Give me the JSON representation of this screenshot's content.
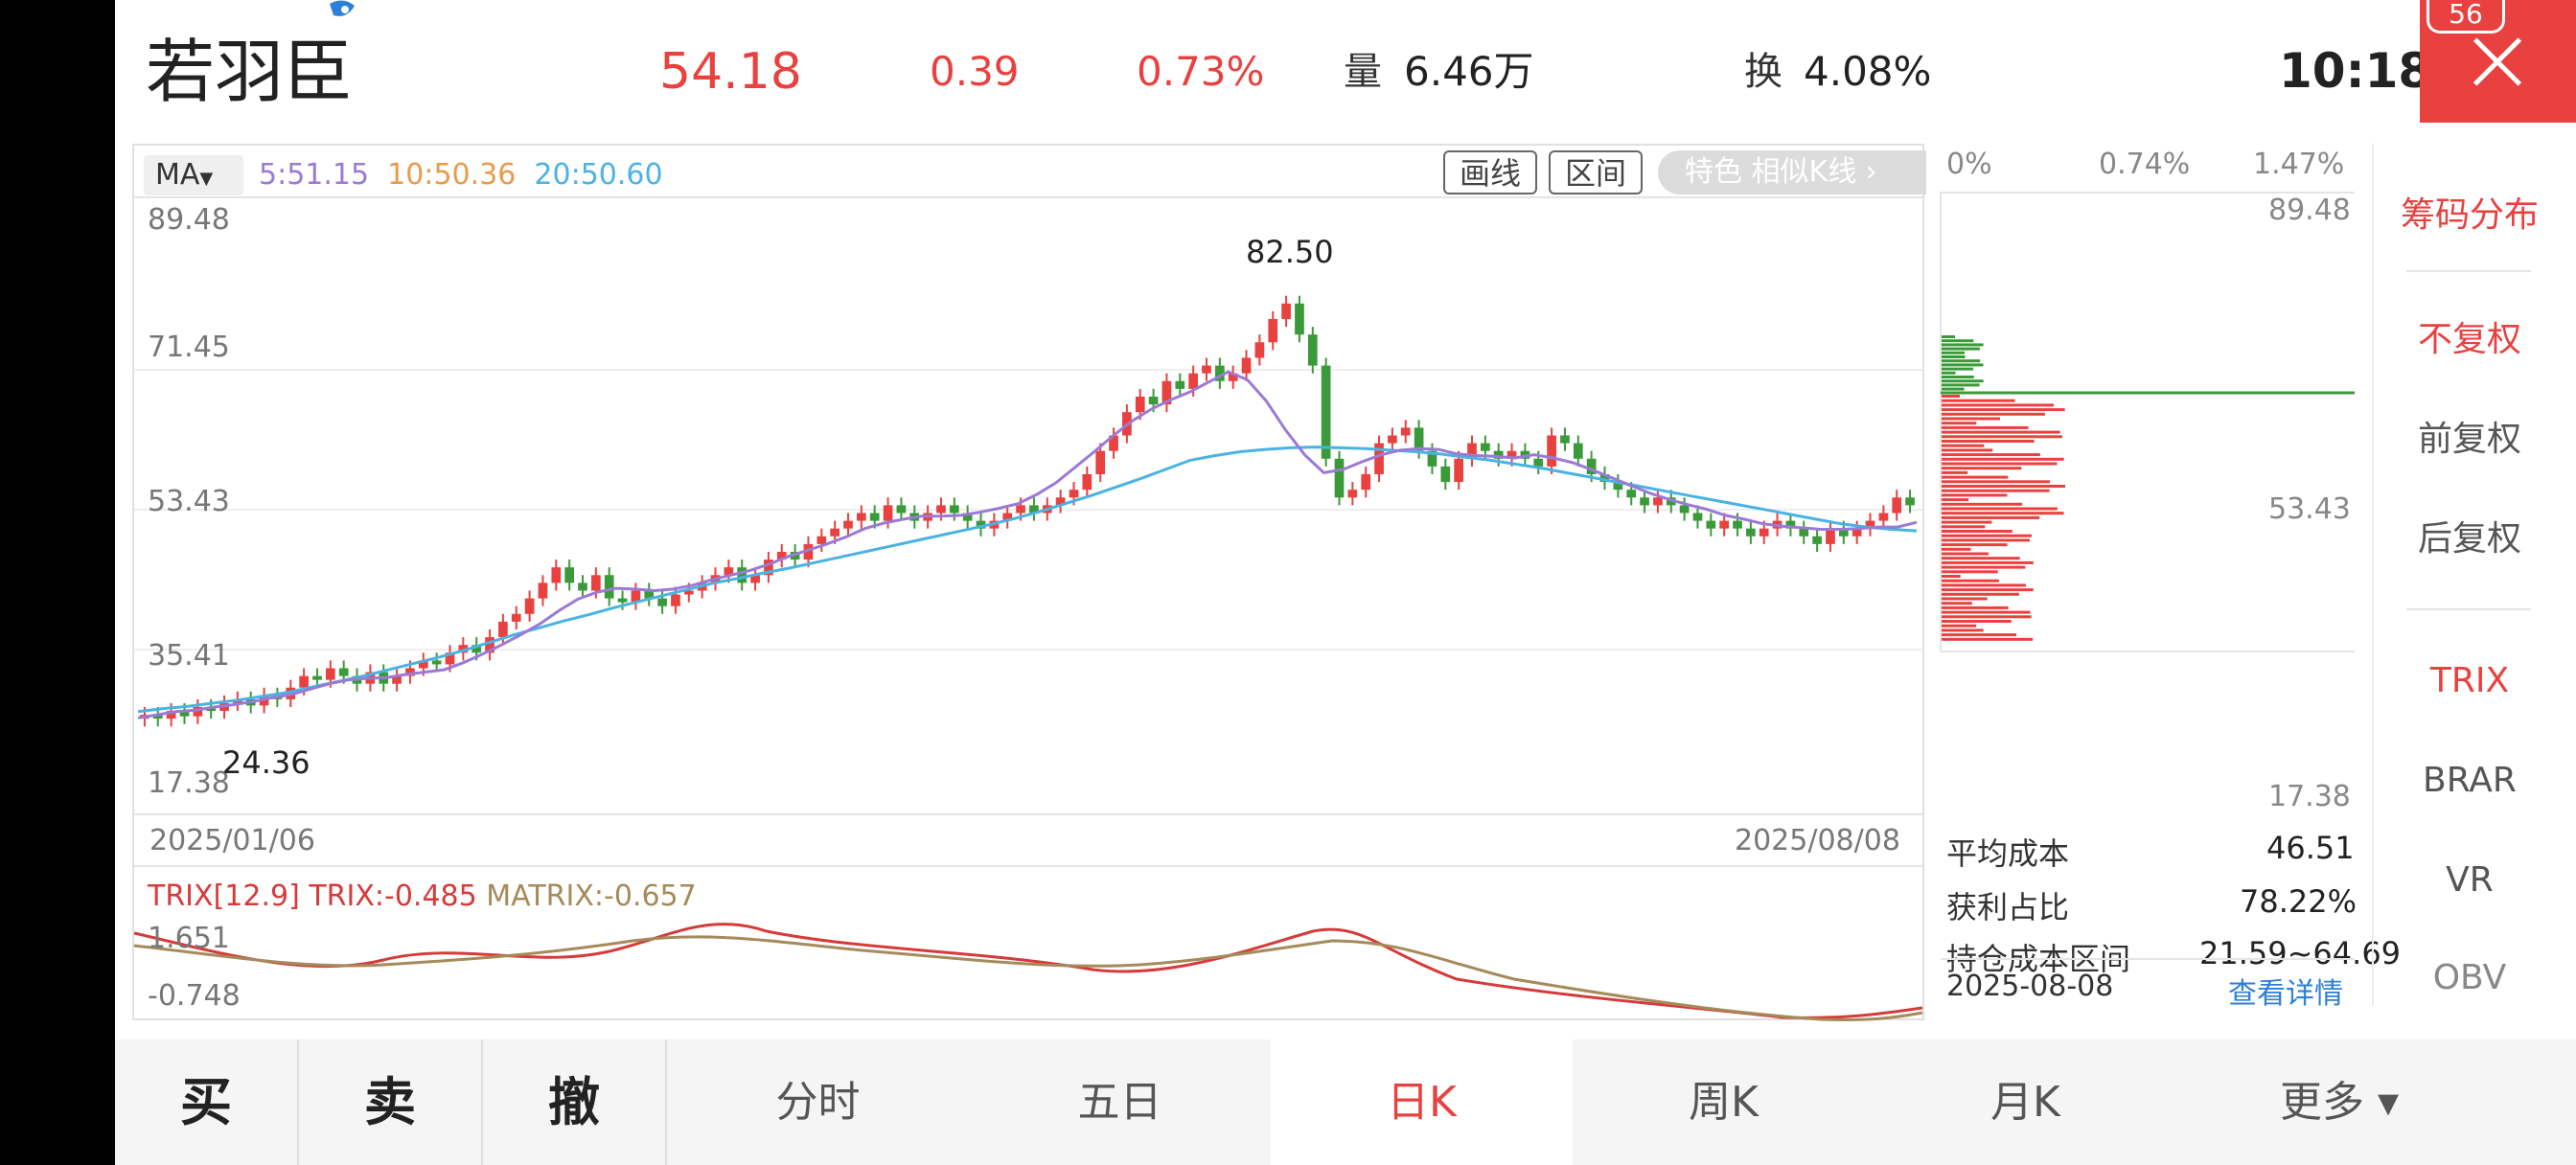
{
  "stock": {
    "name": "若羽臣",
    "price": "54.18",
    "change": "0.39",
    "change_pct": "0.73%",
    "volume_label": "量",
    "volume": "6.46万",
    "turnover_label": "换",
    "turnover": "4.08%",
    "time": "10:18",
    "badge": "56"
  },
  "colors": {
    "up": "#e8413f",
    "down": "#3a9a3a",
    "ma5": "#9b7ad6",
    "ma10": "#e89b4a",
    "ma20": "#4ab3e3",
    "trix": "#d63a3a",
    "matrix": "#a58a5a",
    "link": "#2e7fd6"
  },
  "ma_bar": {
    "button": "MA",
    "ma5": "5:51.15",
    "ma10": "10:50.36",
    "ma20": "20:50.60"
  },
  "tools": {
    "draw": "画线",
    "range": "区间",
    "feature": "特色  相似K线 ›"
  },
  "chart_data": {
    "type": "candlestick",
    "y_axis_ticks": [
      "89.48",
      "71.45",
      "53.43",
      "35.41",
      "17.38"
    ],
    "ylim": [
      17.38,
      89.48
    ],
    "x_labels": [
      "2025/01/06",
      "2025/08/08"
    ],
    "high_annotation": "82.50",
    "low_annotation": "24.36",
    "closes": [
      27,
      26.5,
      27.5,
      26.8,
      28,
      27.5,
      28.5,
      29,
      28.2,
      29.5,
      29,
      30.5,
      32,
      31.5,
      33,
      32,
      31,
      32.5,
      31,
      32,
      33,
      34,
      33.5,
      35,
      36,
      35,
      37,
      39,
      40,
      42,
      44,
      46,
      44,
      43,
      45,
      42,
      41.5,
      43,
      42,
      41,
      42.5,
      43,
      44,
      45,
      46,
      44,
      45,
      47,
      48,
      47,
      49,
      50,
      51,
      52,
      53,
      52,
      54,
      53,
      52,
      53,
      54,
      53,
      52,
      51,
      52,
      53,
      54,
      53,
      54,
      55,
      56,
      58,
      61,
      63,
      66,
      68,
      67,
      70,
      69,
      71,
      72,
      70,
      71,
      73,
      75,
      78,
      80,
      76,
      72,
      60,
      55,
      56,
      58,
      62,
      63,
      64,
      61,
      59,
      57,
      60,
      62,
      61,
      60,
      61,
      60,
      59,
      63,
      62,
      60,
      58,
      57,
      56,
      55,
      54,
      55,
      54,
      53,
      52,
      51,
      52,
      51,
      50,
      51,
      52,
      51,
      50,
      49,
      51,
      50,
      51,
      52,
      53,
      55,
      54
    ],
    "ma5": [
      26.6,
      27,
      27.4,
      27.6,
      28,
      28.3,
      28.7,
      29.2,
      29.6,
      30.3,
      31,
      31.5,
      31.7,
      31.8,
      32.2,
      32.5,
      32.8,
      33.7,
      34.8,
      36,
      37.3,
      38.7,
      40.4,
      41.9,
      42.8,
      43.3,
      43.2,
      43,
      43.2,
      43.7,
      44.4,
      45,
      45.6,
      46.4,
      47.4,
      48.2,
      49,
      49.9,
      51,
      51.7,
      52.2,
      52.6,
      52.6,
      52.7,
      53.1,
      53.6,
      54.2,
      55.4,
      56.9,
      58.9,
      60.9,
      63,
      64.9,
      66.4,
      67.6,
      68.6,
      69.9,
      71.2,
      70.2,
      67.4,
      63.7,
      60.5,
      58.2,
      58.6,
      59.6,
      60.5,
      61.1,
      61.3,
      61.2,
      60.6,
      60.4,
      60.3,
      60.1,
      60.5,
      60.1,
      59.5,
      58.6,
      57.6,
      56.6,
      55.6,
      54.8,
      54.1,
      53.5,
      52.7,
      52.2,
      51.6,
      51.3,
      51.1,
      50.9,
      50.9,
      51,
      51.2,
      51.2,
      51.8
    ],
    "ma20": [
      27.4,
      27.8,
      28.1,
      28.5,
      28.9,
      29.4,
      29.9,
      30.6,
      31.3,
      32,
      32.8,
      33.6,
      34.4,
      35.3,
      36.3,
      37.3,
      38.2,
      39.1,
      39.9,
      40.8,
      41.6,
      42.4,
      43.2,
      44,
      44.6,
      45.3,
      45.9,
      46.6,
      47.3,
      48,
      48.7,
      49.4,
      50.1,
      50.8,
      51.5,
      52.3,
      53.2,
      54.2,
      55.2,
      56.3,
      57.4,
      58.6,
      59.8,
      60.4,
      60.9,
      61.2,
      61.4,
      61.5,
      61.4,
      61.3,
      61.1,
      60.9,
      60.6,
      60.2,
      59.8,
      59.3,
      58.8,
      58.2,
      57.6,
      57,
      56.4,
      55.8,
      55.2,
      54.6,
      54,
      53.4,
      52.8,
      52.2,
      51.6,
      51.2,
      50.9,
      50.7
    ]
  },
  "trix": {
    "header": "TRIX[12.9]",
    "trix_value": "TRIX:-0.485",
    "matrix_value": "MATRIX:-0.657",
    "top": "1.651",
    "bottom": "-0.748"
  },
  "chip_panel": {
    "pct_labels": [
      "0%",
      "0.74%",
      "1.47%"
    ],
    "price_top": "89.48",
    "price_mid": "53.43",
    "price_bottom": "17.38",
    "avg_cost_label": "平均成本",
    "avg_cost": "46.51",
    "profit_label": "获利占比",
    "profit": "78.22%",
    "range_label": "持仓成本区间",
    "range": "21.59~64.69",
    "date": "2025-08-08",
    "detail_link": "查看详情"
  },
  "side_menu": {
    "items": [
      "筹码分布",
      "不复权",
      "前复权",
      "后复权",
      "TRIX",
      "BRAR",
      "VR",
      "OBV"
    ]
  },
  "bottom_bar": {
    "buy": "买",
    "sell": "卖",
    "cancel": "撤",
    "tabs": [
      "分时",
      "五日",
      "日K",
      "周K",
      "月K",
      "更多 ▾"
    ]
  }
}
